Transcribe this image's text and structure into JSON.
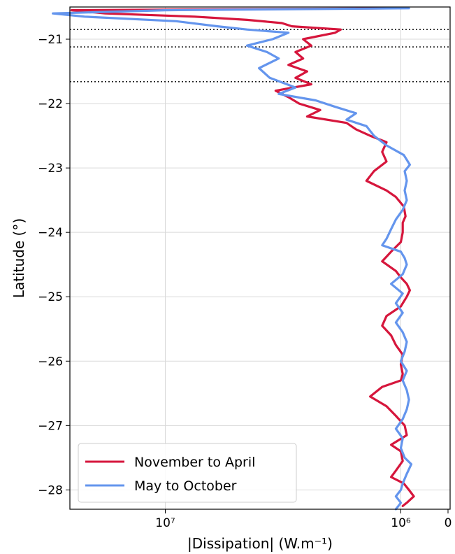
{
  "chart_data": {
    "type": "line",
    "title": "",
    "xlabel": "|Dissipation| (W.m⁻¹)",
    "ylabel": "Latitude (°)",
    "x_axis": {
      "scale": "log",
      "direction": "reversed",
      "ticks": [
        {
          "value": 10000000,
          "label": "10⁷"
        },
        {
          "value": 1000000,
          "label": "10⁶"
        },
        {
          "value": 0,
          "label": "0"
        }
      ]
    },
    "y_axis": {
      "range": [
        -28.3,
        -20.5
      ],
      "ticks": [
        {
          "value": -21,
          "label": "−21"
        },
        {
          "value": -22,
          "label": "−22"
        },
        {
          "value": -23,
          "label": "−23"
        },
        {
          "value": -24,
          "label": "−24"
        },
        {
          "value": -25,
          "label": "−25"
        },
        {
          "value": -26,
          "label": "−26"
        },
        {
          "value": -27,
          "label": "−27"
        },
        {
          "value": -28,
          "label": "−28"
        }
      ]
    },
    "grid": true,
    "reference_lines": [
      -20.85,
      -21.12,
      -21.66
    ],
    "legend": {
      "placement": "lower-left",
      "entries": [
        "November to April",
        "May to October"
      ]
    },
    "series": [
      {
        "name": "November to April",
        "color": "#d6163c",
        "points": [
          [
            -28.25,
            950000
          ],
          [
            -28.2,
            850000
          ],
          [
            -28.1,
            700000
          ],
          [
            -28.0,
            800000
          ],
          [
            -27.9,
            920000
          ],
          [
            -27.8,
            1100000
          ],
          [
            -27.7,
            1050000
          ],
          [
            -27.55,
            950000
          ],
          [
            -27.4,
            1000000
          ],
          [
            -27.3,
            1100000
          ],
          [
            -27.15,
            850000
          ],
          [
            -27.0,
            900000
          ],
          [
            -26.85,
            1050000
          ],
          [
            -26.7,
            1150000
          ],
          [
            -26.55,
            1350000
          ],
          [
            -26.4,
            1200000
          ],
          [
            -26.3,
            1000000
          ],
          [
            -26.2,
            950000
          ],
          [
            -26.05,
            1000000
          ],
          [
            -25.9,
            950000
          ],
          [
            -25.75,
            1050000
          ],
          [
            -25.6,
            1100000
          ],
          [
            -25.45,
            1200000
          ],
          [
            -25.3,
            1150000
          ],
          [
            -25.15,
            1000000
          ],
          [
            -25.0,
            850000
          ],
          [
            -24.9,
            780000
          ],
          [
            -24.8,
            850000
          ],
          [
            -24.7,
            1000000
          ],
          [
            -24.6,
            1050000
          ],
          [
            -24.45,
            1200000
          ],
          [
            -24.3,
            1100000
          ],
          [
            -24.15,
            1000000
          ],
          [
            -24.0,
            950000
          ],
          [
            -23.85,
            950000
          ],
          [
            -23.75,
            880000
          ],
          [
            -23.6,
            920000
          ],
          [
            -23.45,
            1050000
          ],
          [
            -23.35,
            1150000
          ],
          [
            -23.2,
            1400000
          ],
          [
            -23.05,
            1300000
          ],
          [
            -22.9,
            1150000
          ],
          [
            -22.75,
            1200000
          ],
          [
            -22.6,
            1150000
          ],
          [
            -22.5,
            1350000
          ],
          [
            -22.4,
            1550000
          ],
          [
            -22.3,
            1700000
          ],
          [
            -22.2,
            2500000
          ],
          [
            -22.1,
            2200000
          ],
          [
            -22.0,
            2700000
          ],
          [
            -21.9,
            3000000
          ],
          [
            -21.8,
            3400000
          ],
          [
            -21.7,
            2400000
          ],
          [
            -21.6,
            2800000
          ],
          [
            -21.5,
            2500000
          ],
          [
            -21.4,
            3000000
          ],
          [
            -21.3,
            2600000
          ],
          [
            -21.2,
            2800000
          ],
          [
            -21.1,
            2400000
          ],
          [
            -21.0,
            2600000
          ],
          [
            -20.9,
            1900000
          ],
          [
            -20.85,
            1800000
          ],
          [
            -20.8,
            2900000
          ],
          [
            -20.75,
            3200000
          ],
          [
            -20.7,
            4500000
          ],
          [
            -20.65,
            7500000
          ],
          [
            -20.6,
            18000000
          ],
          [
            -20.55,
            25000000
          ],
          [
            -20.52,
            1000000
          ]
        ]
      },
      {
        "name": "May to October",
        "color": "#6495ed",
        "points": [
          [
            -28.3,
            1050000
          ],
          [
            -28.2,
            1000000
          ],
          [
            -28.1,
            1050000
          ],
          [
            -28.0,
            1000000
          ],
          [
            -27.9,
            950000
          ],
          [
            -27.75,
            850000
          ],
          [
            -27.6,
            750000
          ],
          [
            -27.5,
            900000
          ],
          [
            -27.35,
            1000000
          ],
          [
            -27.2,
            950000
          ],
          [
            -27.05,
            1050000
          ],
          [
            -26.9,
            950000
          ],
          [
            -26.75,
            850000
          ],
          [
            -26.6,
            800000
          ],
          [
            -26.45,
            850000
          ],
          [
            -26.3,
            950000
          ],
          [
            -26.15,
            850000
          ],
          [
            -26.0,
            1000000
          ],
          [
            -25.85,
            900000
          ],
          [
            -25.7,
            850000
          ],
          [
            -25.55,
            950000
          ],
          [
            -25.4,
            1050000
          ],
          [
            -25.25,
            950000
          ],
          [
            -25.1,
            1050000
          ],
          [
            -24.95,
            950000
          ],
          [
            -24.8,
            1100000
          ],
          [
            -24.65,
            950000
          ],
          [
            -24.5,
            850000
          ],
          [
            -24.4,
            900000
          ],
          [
            -24.3,
            1000000
          ],
          [
            -24.2,
            1200000
          ],
          [
            -24.1,
            1150000
          ],
          [
            -23.95,
            1100000
          ],
          [
            -23.8,
            1050000
          ],
          [
            -23.65,
            950000
          ],
          [
            -23.5,
            850000
          ],
          [
            -23.35,
            900000
          ],
          [
            -23.2,
            850000
          ],
          [
            -23.05,
            900000
          ],
          [
            -22.95,
            780000
          ],
          [
            -22.8,
            920000
          ],
          [
            -22.65,
            1150000
          ],
          [
            -22.5,
            1300000
          ],
          [
            -22.35,
            1400000
          ],
          [
            -22.25,
            1700000
          ],
          [
            -22.15,
            1550000
          ],
          [
            -22.05,
            1900000
          ],
          [
            -21.95,
            2300000
          ],
          [
            -21.85,
            3300000
          ],
          [
            -21.75,
            2800000
          ],
          [
            -21.6,
            3600000
          ],
          [
            -21.45,
            4000000
          ],
          [
            -21.3,
            3300000
          ],
          [
            -21.2,
            3700000
          ],
          [
            -21.1,
            4500000
          ],
          [
            -21.0,
            3500000
          ],
          [
            -20.9,
            3000000
          ],
          [
            -20.85,
            4500000
          ],
          [
            -20.8,
            6000000
          ],
          [
            -20.72,
            9000000
          ],
          [
            -20.65,
            22000000
          ],
          [
            -20.6,
            30000000
          ],
          [
            -20.55,
            10000000
          ],
          [
            -20.52,
            800000
          ]
        ]
      }
    ]
  }
}
